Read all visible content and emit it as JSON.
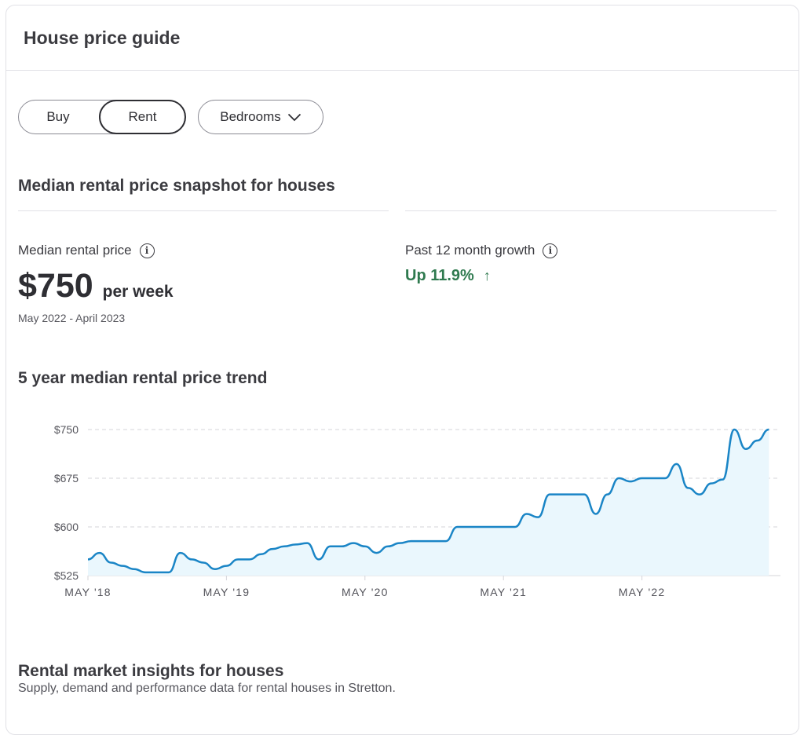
{
  "card": {
    "title": "House price guide"
  },
  "toggle": {
    "buy_label": "Buy",
    "rent_label": "Rent",
    "selected": "Rent"
  },
  "bedrooms": {
    "label": "Bedrooms",
    "icon": "chevron-down-icon"
  },
  "snapshot": {
    "title": "Median rental price snapshot for houses",
    "median_label": "Median rental price",
    "median_value": "$750",
    "median_unit": "per week",
    "period": "May 2022 - April 2023",
    "growth_label": "Past 12 month growth",
    "growth_value": "Up 11.9%",
    "growth_arrow": "↑",
    "growth_color": "#2f7a4f"
  },
  "trend": {
    "title": "5 year median rental price trend"
  },
  "insights": {
    "title": "Rental market insights for houses",
    "subtitle": "Supply, demand and performance data for rental houses in Stretton."
  },
  "chart_data": {
    "type": "area",
    "title": "5 year median rental price trend",
    "xlabel": "",
    "ylabel": "",
    "ylim": [
      525,
      750
    ],
    "yticks": [
      525,
      600,
      675,
      750
    ],
    "ytick_labels": [
      "$525",
      "$600",
      "$675",
      "$750"
    ],
    "xlim": [
      "2018-05",
      "2023-05"
    ],
    "xticks": [
      "2018-05",
      "2019-05",
      "2020-05",
      "2021-05",
      "2022-05"
    ],
    "xtick_labels": [
      "MAY '18",
      "MAY '19",
      "MAY '20",
      "MAY '21",
      "MAY '22"
    ],
    "grid": "horizontal dashed",
    "line_color": "#1a85c6",
    "fill_color": "#eaf7fd",
    "series": [
      {
        "x": [
          "2018-05",
          "2018-06",
          "2018-07",
          "2018-08",
          "2018-09",
          "2018-10",
          "2018-11",
          "2018-12",
          "2019-01",
          "2019-02",
          "2019-03",
          "2019-04",
          "2019-05",
          "2019-06",
          "2019-07",
          "2019-08",
          "2019-09",
          "2019-10",
          "2019-11",
          "2019-12",
          "2020-01",
          "2020-02",
          "2020-03",
          "2020-04",
          "2020-05",
          "2020-06",
          "2020-07",
          "2020-08",
          "2020-09",
          "2020-10",
          "2020-11",
          "2020-12",
          "2021-01",
          "2021-02",
          "2021-03",
          "2021-04",
          "2021-05",
          "2021-06",
          "2021-07",
          "2021-08",
          "2021-09",
          "2021-10",
          "2021-11",
          "2021-12",
          "2022-01",
          "2022-02",
          "2022-03",
          "2022-04",
          "2022-05",
          "2022-06",
          "2022-07",
          "2022-08",
          "2022-09",
          "2022-10",
          "2022-11",
          "2022-12",
          "2023-01",
          "2023-02",
          "2023-03",
          "2023-04"
        ],
        "y": [
          550,
          560,
          545,
          540,
          535,
          530,
          530,
          530,
          560,
          550,
          545,
          535,
          540,
          550,
          550,
          558,
          566,
          570,
          573,
          575,
          550,
          570,
          570,
          575,
          570,
          560,
          570,
          575,
          578,
          578,
          578,
          578,
          600,
          600,
          600,
          600,
          600,
          600,
          620,
          615,
          650,
          650,
          650,
          650,
          620,
          650,
          675,
          670,
          675,
          675,
          675,
          697,
          660,
          650,
          667,
          673,
          750,
          720,
          733,
          750
        ]
      }
    ]
  }
}
